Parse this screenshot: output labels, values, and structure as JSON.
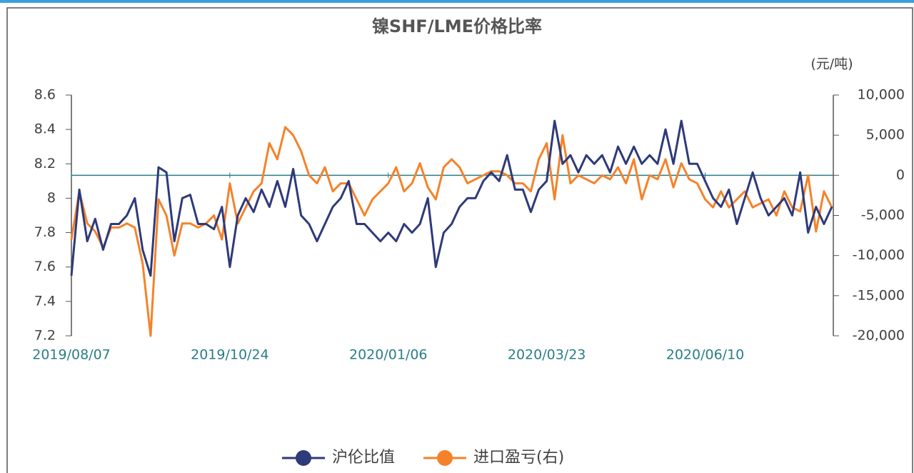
{
  "chart_data": {
    "type": "line",
    "title": "镍SHF/LME价格比率",
    "y2_unit": "(元/吨)",
    "categories": [
      "2019/08/07",
      null,
      null,
      null,
      null,
      null,
      null,
      null,
      null,
      null,
      null,
      null,
      null,
      null,
      null,
      null,
      null,
      null,
      null,
      null,
      "2019/10/24",
      null,
      null,
      null,
      null,
      null,
      null,
      null,
      null,
      null,
      null,
      null,
      null,
      null,
      null,
      null,
      null,
      null,
      null,
      null,
      "2020/01/06",
      null,
      null,
      null,
      null,
      null,
      null,
      null,
      null,
      null,
      null,
      null,
      null,
      null,
      null,
      null,
      null,
      null,
      null,
      null,
      "2020/03/23",
      null,
      null,
      null,
      null,
      null,
      null,
      null,
      null,
      null,
      null,
      null,
      null,
      null,
      null,
      null,
      null,
      null,
      null,
      null,
      "2020/06/10",
      null,
      null,
      null,
      null,
      null,
      null,
      null,
      null,
      null,
      null,
      null,
      null,
      null,
      null,
      null,
      null
    ],
    "series": [
      {
        "name": "沪伦比值",
        "color": "#2e3a7a",
        "values": [
          7.55,
          8.05,
          7.75,
          7.88,
          7.7,
          7.85,
          7.85,
          7.9,
          8.0,
          7.7,
          7.55,
          8.18,
          8.15,
          7.75,
          8.0,
          8.02,
          7.85,
          7.85,
          7.82,
          7.95,
          7.6,
          7.9,
          8.0,
          7.92,
          8.05,
          7.95,
          8.1,
          7.95,
          8.17,
          7.9,
          7.85,
          7.75,
          7.85,
          7.95,
          8.0,
          8.1,
          7.85,
          7.85,
          7.8,
          7.75,
          7.8,
          7.75,
          7.85,
          7.8,
          7.85,
          8.0,
          7.6,
          7.8,
          7.85,
          7.95,
          8.0,
          8.0,
          8.1,
          8.15,
          8.1,
          8.25,
          8.05,
          8.05,
          7.92,
          8.05,
          8.1,
          8.45,
          8.2,
          8.25,
          8.15,
          8.25,
          8.2,
          8.25,
          8.15,
          8.3,
          8.2,
          8.3,
          8.2,
          8.25,
          8.2,
          8.4,
          8.2,
          8.45,
          8.2,
          8.2,
          8.1,
          8.0,
          7.95,
          8.05,
          7.85,
          8.0,
          8.15,
          8.0,
          7.9,
          7.95,
          8.0,
          7.9,
          8.15,
          7.8,
          7.95,
          7.85,
          7.95
        ]
      },
      {
        "name": "进口盈亏(右)",
        "color": "#f5822a",
        "axis": "y2",
        "values": [
          -8000,
          -2000,
          -6000,
          -7000,
          -9000,
          -6500,
          -6500,
          -6000,
          -6500,
          -11000,
          -20000,
          -3000,
          -5000,
          -10000,
          -6000,
          -6000,
          -6500,
          -6000,
          -5000,
          -8000,
          -1000,
          -6000,
          -4000,
          -2000,
          -1000,
          4000,
          2000,
          6000,
          5000,
          3000,
          0,
          -1000,
          1000,
          -2000,
          -1000,
          -1000,
          -3000,
          -5000,
          -3000,
          -2000,
          -1000,
          1000,
          -2000,
          -1000,
          1500,
          -1500,
          -3000,
          1000,
          2000,
          1000,
          -1000,
          -500,
          0,
          500,
          500,
          0,
          -1000,
          -1000,
          -2000,
          2000,
          4000,
          -3000,
          5000,
          -1000,
          0,
          -500,
          -1000,
          0,
          -500,
          1000,
          -1000,
          2000,
          -3000,
          0,
          -500,
          2000,
          -1500,
          1500,
          -500,
          -1000,
          -3000,
          -4000,
          -2000,
          -4000,
          -3000,
          -2000,
          -4000,
          -3500,
          -3000,
          -5000,
          -2000,
          -4000,
          -4500,
          0,
          -7000,
          -2000,
          -4000
        ]
      }
    ],
    "ylim": [
      7.2,
      8.6
    ],
    "yticks": [
      7.2,
      7.4,
      7.6,
      7.8,
      8,
      8.2,
      8.4,
      8.6
    ],
    "y2lim": [
      -20000,
      10000
    ],
    "y2ticks": [
      {
        "value": -20000,
        "label": "-20,000"
      },
      {
        "value": -15000,
        "label": "-15,000"
      },
      {
        "value": -10000,
        "label": "-10,000"
      },
      {
        "value": -5000,
        "label": "-5,000"
      },
      0,
      {
        "value": 5000,
        "label": "5,000"
      },
      {
        "value": 10000,
        "label": "10,000"
      }
    ],
    "legend": "bottom"
  }
}
